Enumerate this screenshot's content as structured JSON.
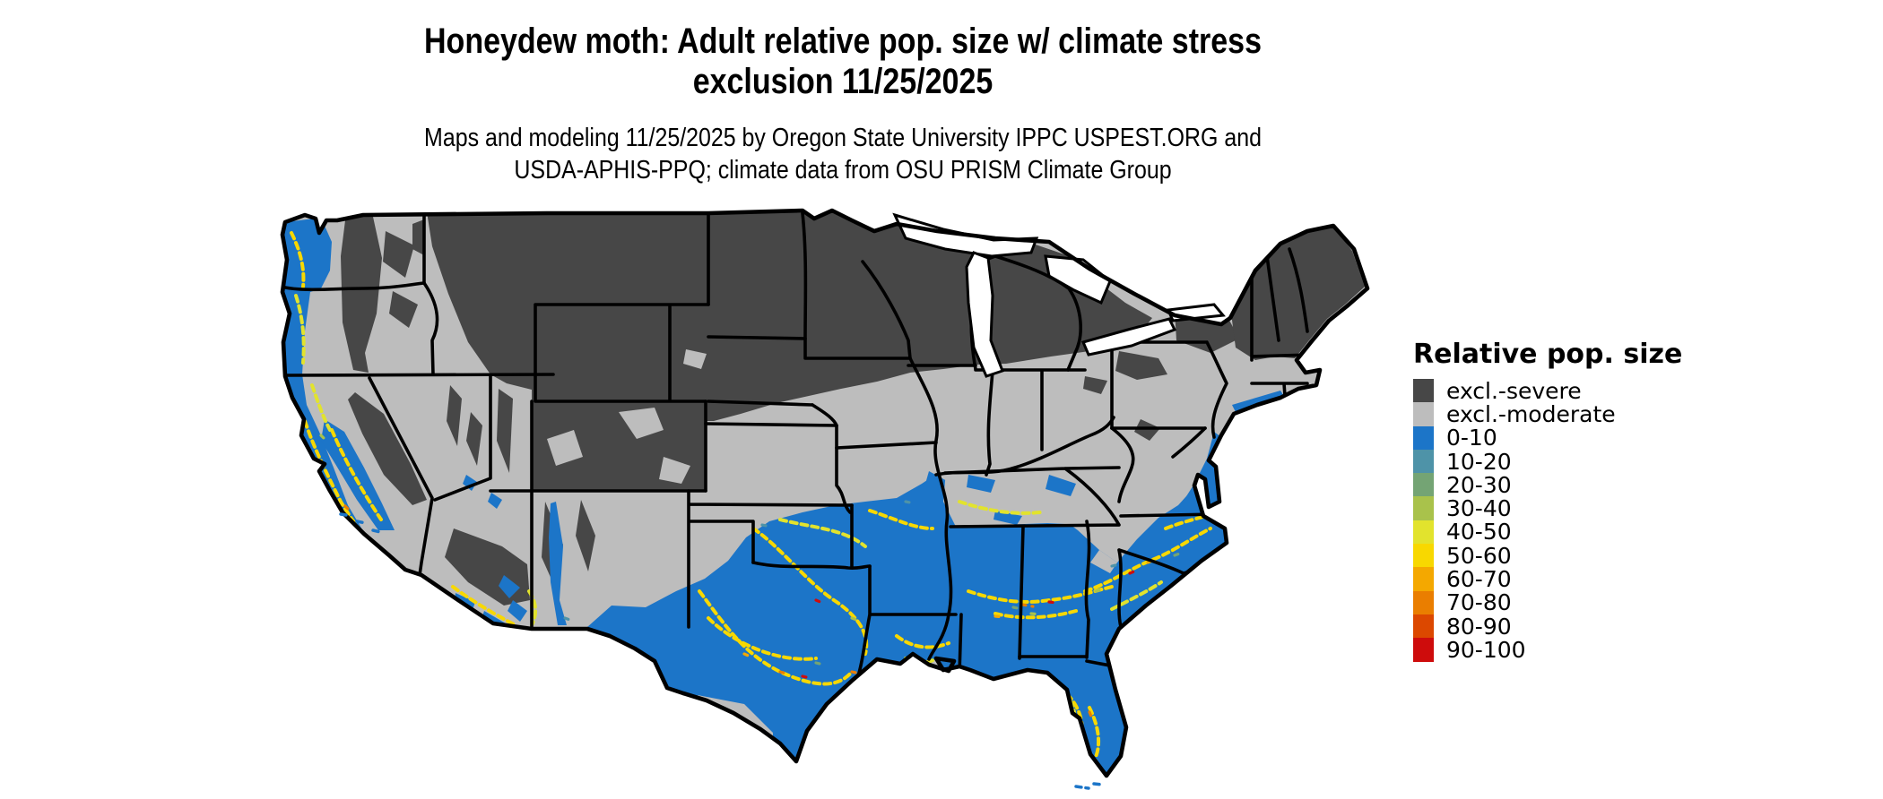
{
  "title": {
    "line1": "Honeydew moth: Adult relative pop. size w/ climate stress",
    "line2": "exclusion 11/25/2025"
  },
  "subtitle": {
    "line1": "Maps and modeling 11/25/2025 by Oregon State University IPPC USPEST.ORG and",
    "line2": "USDA-APHIS-PPQ; climate data from OSU PRISM Climate Group"
  },
  "legend": {
    "title": "Relative pop. size",
    "items": [
      {
        "key": "excl_severe",
        "label": "excl.-severe"
      },
      {
        "key": "excl_moderate",
        "label": "excl.-moderate"
      },
      {
        "key": "v0_10",
        "label": "0-10"
      },
      {
        "key": "v10_20",
        "label": "10-20"
      },
      {
        "key": "v20_30",
        "label": "20-30"
      },
      {
        "key": "v30_40",
        "label": "30-40"
      },
      {
        "key": "v40_50",
        "label": "40-50"
      },
      {
        "key": "v50_60",
        "label": "50-60"
      },
      {
        "key": "v60_70",
        "label": "60-70"
      },
      {
        "key": "v70_80",
        "label": "70-80"
      },
      {
        "key": "v80_90",
        "label": "80-90"
      },
      {
        "key": "v90_100",
        "label": "90-100"
      }
    ]
  },
  "palette": {
    "excl_severe": "#474747",
    "excl_moderate": "#bdbdbd",
    "v0_10": "#1c75c8",
    "v10_20": "#4e93a8",
    "v20_30": "#74a474",
    "v30_40": "#a9c24b",
    "v40_50": "#e2e32d",
    "v50_60": "#f8d800",
    "v60_70": "#f4a800",
    "v70_80": "#ea7e00",
    "v80_90": "#dc4800",
    "v90_100": "#ce0c0c"
  },
  "map_data": {
    "type": "choropleth-raster",
    "extent": "Continental United States with black state borders on white background",
    "region_summaries": [
      {
        "area": "Northern tier: Montana, Dakotas, Minnesota, Wisconsin, upper Michigan, Wyoming, Colorado, Idaho, Cascades, Sierra Nevada, Adirondacks, northern New England",
        "category": "excl.-severe"
      },
      {
        "area": "Mid-latitude band: eastern Washington/Oregon, Great Basin, Kansas, Nebraska south, Missouri, Illinois, Indiana, Ohio, Pennsylvania, Kentucky, Tennessee, interior Virginia, south Texas brush country",
        "category": "excl.-moderate"
      },
      {
        "area": "Southern US: Texas, Oklahoma south, Gulf states, Southeast, Florida, Atlantic coastal plain to Chesapeake; Pacific coast, Puget lowland, Willamette and Central Valley of California; scattered southern Arizona/New Mexico valleys",
        "category": "0-10"
      },
      {
        "area": "Stringy hotspot bands: central Texas arc, coastal Louisiana, central Mississippi/Alabama/Georgia, Carolina fall line, central Florida, California coast ranges and valley margins",
        "category": "40-60 with scattered 60-100 cores"
      }
    ]
  }
}
